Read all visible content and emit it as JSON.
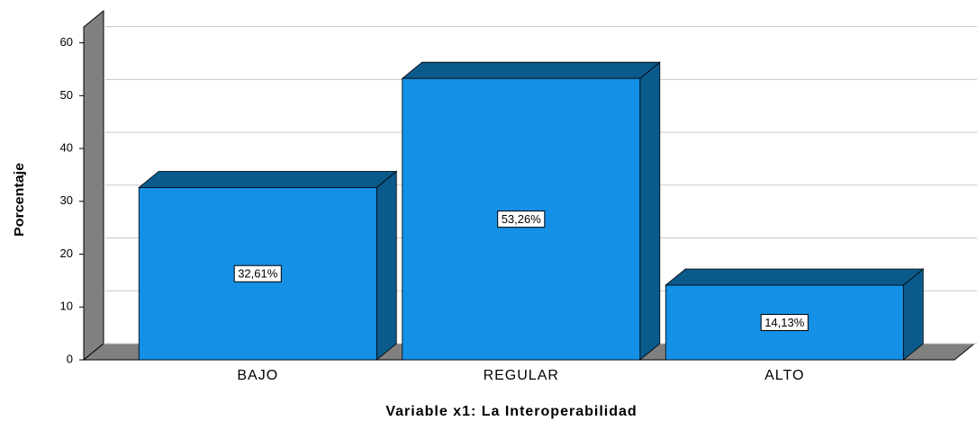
{
  "chart_data": {
    "type": "bar",
    "title": "Variable x1: La Interoperabilidad",
    "y_label": "Porcentaje",
    "categories": [
      "BAJO",
      "REGULAR",
      "ALTO"
    ],
    "values": [
      32.61,
      53.26,
      14.13
    ],
    "value_labels": [
      "32,61%",
      "53,26%",
      "14,13%"
    ],
    "color": "#1490e6",
    "ylim": [
      0,
      63
    ],
    "yticks": [
      0,
      10,
      20,
      30,
      40,
      50,
      60
    ],
    "grid": true
  }
}
